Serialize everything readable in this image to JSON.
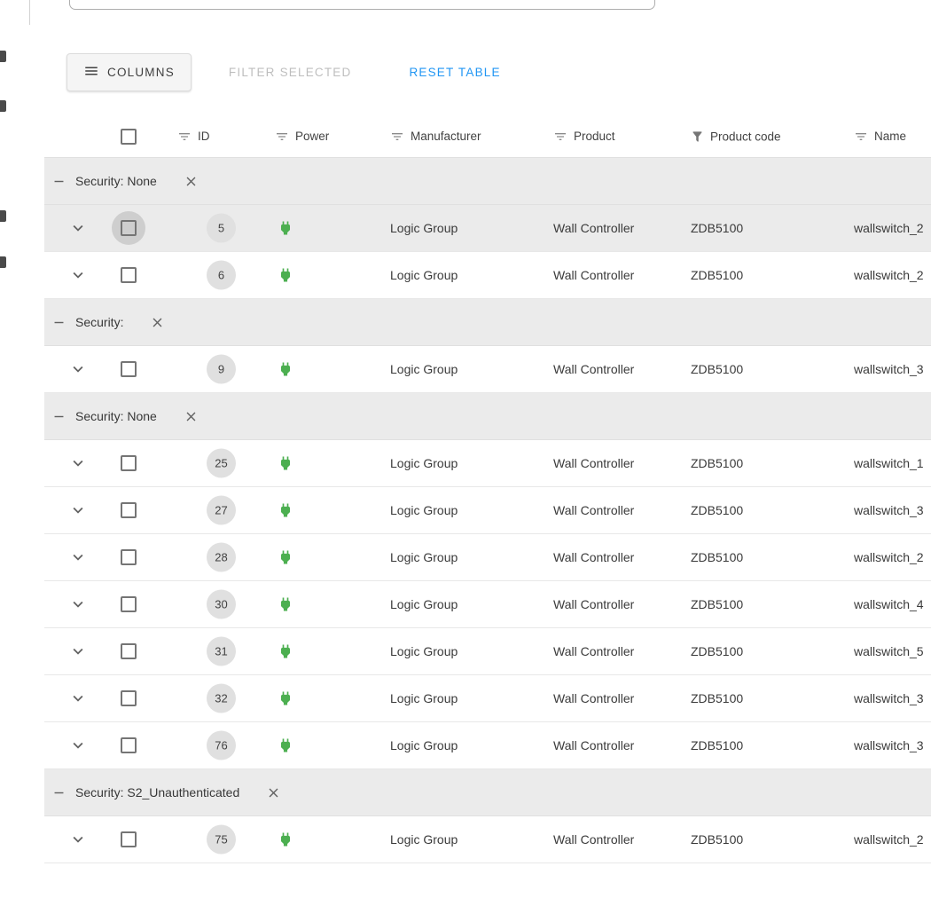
{
  "colors": {
    "accent_blue": "#2196f3",
    "power_green": "#4caf50",
    "group_row_bg": "#ebebeb",
    "selected_row_bg": "#ebebeb",
    "id_chip_bg": "#e0e0e0"
  },
  "toolbar": {
    "columns_label": "COLUMNS",
    "filter_selected_label": "FILTER SELECTED",
    "reset_table_label": "RESET TABLE"
  },
  "icons": {
    "columns_button": "menu-icon",
    "row_expand": "chevron-down-icon",
    "power_cell": "power-plug-icon",
    "group_collapse": "minus-icon",
    "group_remove": "close-icon",
    "column_filter": "filter-variant-icon",
    "column_filter_active": "filter-filled-icon"
  },
  "table": {
    "columns": [
      {
        "label": "ID",
        "filter_icon": "filter-variant"
      },
      {
        "label": "Power",
        "filter_icon": "filter-variant"
      },
      {
        "label": "Manufacturer",
        "filter_icon": "filter-variant"
      },
      {
        "label": "Product",
        "filter_icon": "filter-variant"
      },
      {
        "label": "Product code",
        "filter_icon": "filter-active"
      },
      {
        "label": "Name",
        "filter_icon": "filter-variant"
      }
    ],
    "groups": [
      {
        "label": "Security: None",
        "rows": [
          {
            "id": "5",
            "manufacturer": "Logic Group",
            "product": "Wall Controller",
            "product_code": "ZDB5100",
            "name": "wallswitch_2",
            "selected": true
          },
          {
            "id": "6",
            "manufacturer": "Logic Group",
            "product": "Wall Controller",
            "product_code": "ZDB5100",
            "name": "wallswitch_2",
            "selected": false
          }
        ]
      },
      {
        "label": "Security:",
        "rows": [
          {
            "id": "9",
            "manufacturer": "Logic Group",
            "product": "Wall Controller",
            "product_code": "ZDB5100",
            "name": "wallswitch_3",
            "selected": false
          }
        ]
      },
      {
        "label": "Security: None",
        "rows": [
          {
            "id": "25",
            "manufacturer": "Logic Group",
            "product": "Wall Controller",
            "product_code": "ZDB5100",
            "name": "wallswitch_1",
            "selected": false
          },
          {
            "id": "27",
            "manufacturer": "Logic Group",
            "product": "Wall Controller",
            "product_code": "ZDB5100",
            "name": "wallswitch_3",
            "selected": false
          },
          {
            "id": "28",
            "manufacturer": "Logic Group",
            "product": "Wall Controller",
            "product_code": "ZDB5100",
            "name": "wallswitch_2",
            "selected": false
          },
          {
            "id": "30",
            "manufacturer": "Logic Group",
            "product": "Wall Controller",
            "product_code": "ZDB5100",
            "name": "wallswitch_4",
            "selected": false
          },
          {
            "id": "31",
            "manufacturer": "Logic Group",
            "product": "Wall Controller",
            "product_code": "ZDB5100",
            "name": "wallswitch_5",
            "selected": false
          },
          {
            "id": "32",
            "manufacturer": "Logic Group",
            "product": "Wall Controller",
            "product_code": "ZDB5100",
            "name": "wallswitch_3",
            "selected": false
          },
          {
            "id": "76",
            "manufacturer": "Logic Group",
            "product": "Wall Controller",
            "product_code": "ZDB5100",
            "name": "wallswitch_3",
            "selected": false
          }
        ]
      },
      {
        "label": "Security: S2_Unauthenticated",
        "rows": [
          {
            "id": "75",
            "manufacturer": "Logic Group",
            "product": "Wall Controller",
            "product_code": "ZDB5100",
            "name": "wallswitch_2",
            "selected": false
          }
        ]
      }
    ]
  }
}
